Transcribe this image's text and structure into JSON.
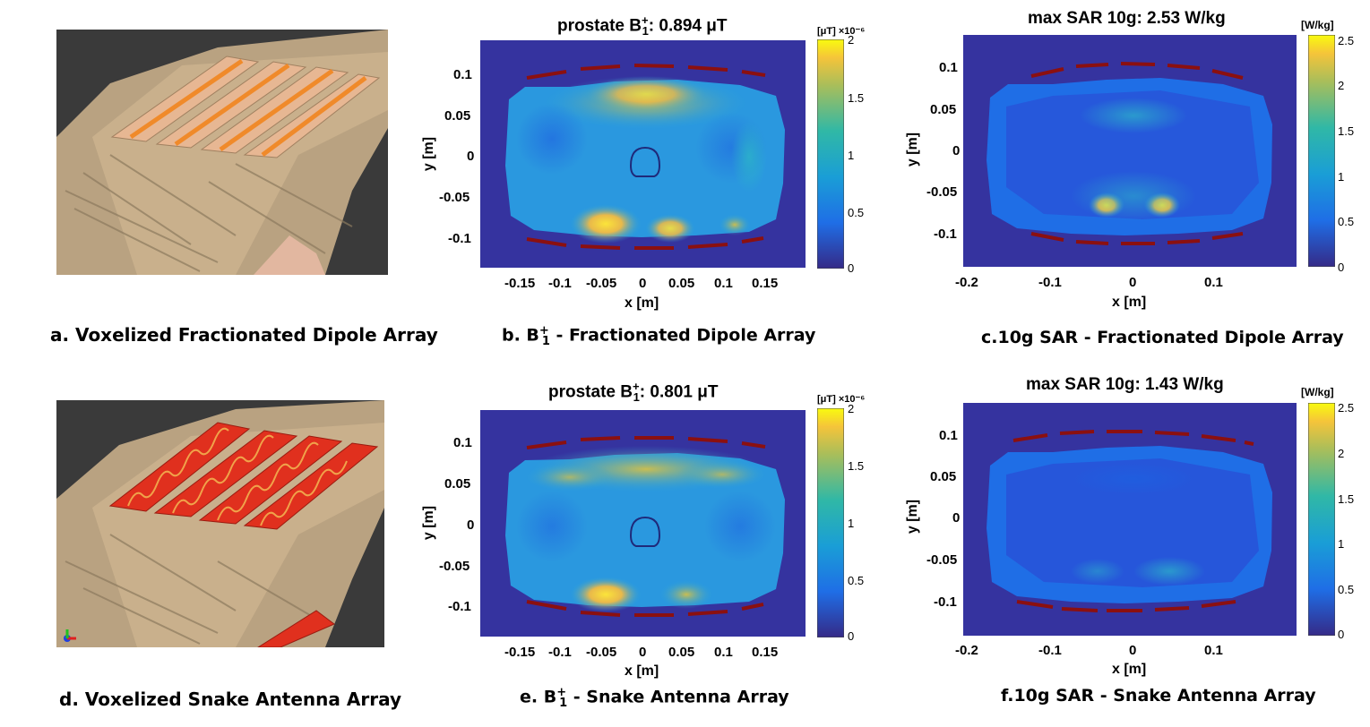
{
  "colors": {
    "background": "#35339f",
    "body_low": "#1f6ee6",
    "body_mid": "#2aa5d8",
    "body_high": "#f6c73a",
    "coil": "#8b1010",
    "skin": "#c9b08c",
    "dipole_strip": "#f0a46f",
    "snake_strip": "#e0301e"
  },
  "captions": {
    "a": "a. Voxelized Fractionated Dipole Array",
    "b_prefix": "b. B",
    "b_sup": "+",
    "b_sub": "1",
    "b_suffix": " - Fractionated Dipole Array",
    "c": "c.10g SAR - Fractionated Dipole Array",
    "d": "d. Voxelized Snake Antenna Array",
    "e_prefix": "e. B",
    "e_sup": "+",
    "e_sub": "1",
    "e_suffix": " - Snake Antenna Array",
    "f": "f.10g SAR - Snake Antenna Array"
  },
  "chart_data": [
    {
      "id": "b",
      "type": "heatmap",
      "title_prefix": "prostate B",
      "title_sup": "+",
      "title_sub": "1",
      "title_value": ": 0.894 μT",
      "xlabel": "x [m]",
      "ylabel": "y [m]",
      "xticks": [
        "-0.15",
        "-0.1",
        "-0.05",
        "0",
        "0.05",
        "0.1",
        "0.15"
      ],
      "yticks": [
        "0.1",
        "0.05",
        "0",
        "-0.05",
        "-0.1"
      ],
      "colorbar_unit": "[μT] ×10⁻⁶",
      "colorbar_ticks": [
        "2",
        "1.5",
        "1",
        "0.5",
        "0"
      ],
      "colorbar_range": [
        0,
        2
      ]
    },
    {
      "id": "c",
      "type": "heatmap",
      "title": "max SAR 10g: 2.53 W/kg",
      "xlabel": "x [m]",
      "ylabel": "y [m]",
      "xticks": [
        "-0.2",
        "-0.1",
        "0",
        "0.1"
      ],
      "yticks": [
        "0.1",
        "0.05",
        "0",
        "-0.05",
        "-0.1"
      ],
      "colorbar_unit": "[W/kg]",
      "colorbar_ticks": [
        "2.5",
        "2",
        "1.5",
        "1",
        "0.5",
        "0"
      ],
      "colorbar_range": [
        0,
        2.53
      ]
    },
    {
      "id": "e",
      "type": "heatmap",
      "title_prefix": "prostate B",
      "title_sup": "+",
      "title_sub": "1",
      "title_value": ": 0.801 μT",
      "xlabel": "x [m]",
      "ylabel": "y [m]",
      "xticks": [
        "-0.15",
        "-0.1",
        "-0.05",
        "0",
        "0.05",
        "0.1",
        "0.15"
      ],
      "yticks": [
        "0.1",
        "0.05",
        "0",
        "-0.05",
        "-0.1"
      ],
      "colorbar_unit": "[μT] ×10⁻⁶",
      "colorbar_ticks": [
        "2",
        "1.5",
        "1",
        "0.5",
        "0"
      ],
      "colorbar_range": [
        0,
        2
      ]
    },
    {
      "id": "f",
      "type": "heatmap",
      "title": "max SAR 10g: 1.43 W/kg",
      "xlabel": "x [m]",
      "ylabel": "y [m]",
      "xticks": [
        "-0.2",
        "-0.1",
        "0",
        "0.1"
      ],
      "yticks": [
        "0.1",
        "0.05",
        "0",
        "-0.05",
        "-0.1"
      ],
      "colorbar_unit": "[W/kg]",
      "colorbar_ticks": [
        "2.5",
        "2",
        "1.5",
        "1",
        "0.5",
        "0"
      ],
      "colorbar_range": [
        0,
        2.53
      ]
    }
  ]
}
